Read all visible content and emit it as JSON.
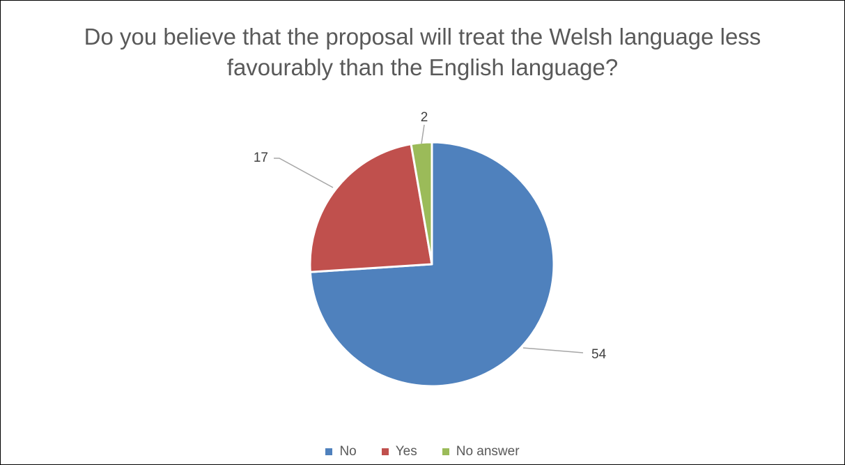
{
  "chart_data": {
    "type": "pie",
    "title": "Do you believe that the proposal will treat the Welsh language less\nfavourably than the English language?",
    "categories": [
      "No",
      "Yes",
      "No answer"
    ],
    "values": [
      54,
      17,
      2
    ],
    "data_labels": [
      "54",
      "17",
      "2"
    ],
    "colors": [
      "#4F81BD",
      "#C0504D",
      "#9BBB59"
    ],
    "legend_position": "bottom",
    "start_angle_deg": 0,
    "direction": "clockwise"
  }
}
